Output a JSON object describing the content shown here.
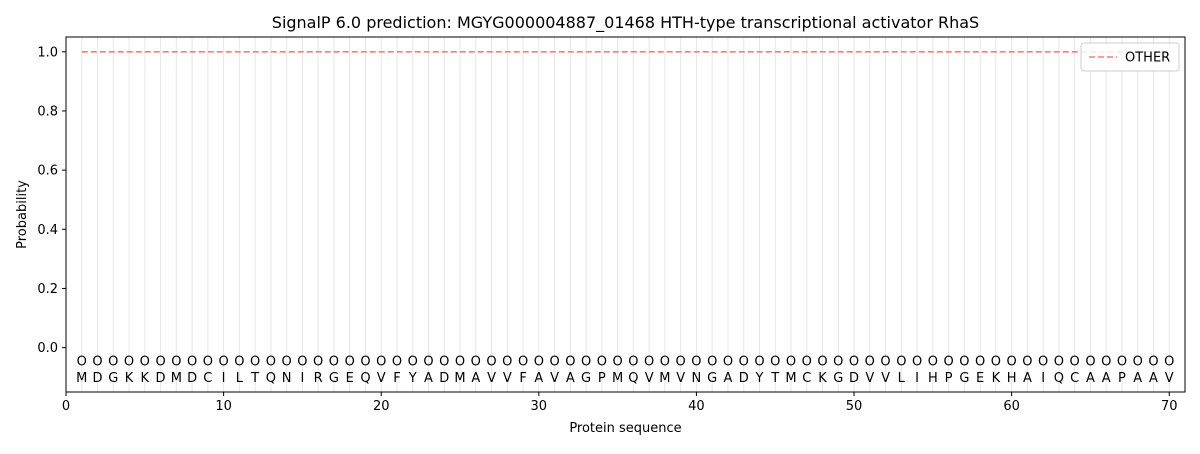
{
  "chart_data": {
    "type": "line",
    "title": "SignalP 6.0 prediction: MGYG000004887_01468 HTH-type transcriptional activator RhaS",
    "xlabel": "Protein sequence",
    "ylabel": "Probability",
    "xlim": [
      0,
      71
    ],
    "ylim": [
      -0.15,
      1.05
    ],
    "x_ticks": [
      0,
      10,
      20,
      30,
      40,
      50,
      60,
      70
    ],
    "y_ticks": [
      0.0,
      0.2,
      0.4,
      0.6,
      0.8,
      1.0
    ],
    "y_tick_labels": [
      "0.0",
      "0.2",
      "0.4",
      "0.6",
      "0.8",
      "1.0"
    ],
    "grid": "vertical lines at each residue",
    "legend": {
      "placement": "top-right",
      "entries": [
        "OTHER"
      ]
    },
    "series": [
      {
        "name": "OTHER",
        "color": "#f08080",
        "style": "dashed",
        "x_start": 1,
        "x_end": 70,
        "value": 1.0
      }
    ],
    "sequence": "MDGKKDMDCILTQNIRGEQVFYADMAVVFAVAGPMQVMVNGADYTMCKGDVVLIHPGEKHAIQCAAPAAV",
    "predicted_label": "O",
    "label_y": -0.045
  }
}
